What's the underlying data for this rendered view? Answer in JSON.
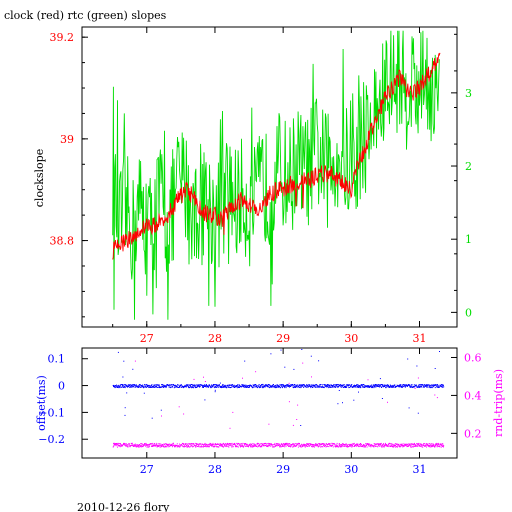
{
  "chart_data": [
    {
      "type": "line",
      "title": "clock (red) rtc (green) slopes",
      "ylabel": "clockslope",
      "x_ticks": [
        27,
        28,
        29,
        30,
        31
      ],
      "xlim": [
        26.05,
        31.55
      ],
      "ylim": [
        38.63,
        39.22
      ],
      "y_ticks": [
        38.8,
        39,
        39.2
      ],
      "y_tick_labels": [
        "38.8",
        "39",
        "39.2"
      ],
      "y2lim": [
        -0.2,
        3.9
      ],
      "y2_ticks": [
        0,
        1,
        2,
        3
      ],
      "colors": {
        "red": "#ff0000",
        "green": "#00dd00",
        "frame": "#000000"
      },
      "series": [
        {
          "color": "#ff0000",
          "axis": "left",
          "x": [
            26.5,
            26.6,
            26.7,
            26.8,
            26.9,
            27.0,
            27.1,
            27.2,
            27.3,
            27.4,
            27.5,
            27.6,
            27.7,
            27.8,
            27.9,
            28.0,
            28.1,
            28.2,
            28.3,
            28.4,
            28.5,
            28.6,
            28.7,
            28.8,
            28.9,
            29.0,
            29.1,
            29.2,
            29.3,
            29.4,
            29.5,
            29.6,
            29.7,
            29.8,
            29.9,
            30.0,
            30.1,
            30.2,
            30.3,
            30.4,
            30.5,
            30.6,
            30.7,
            30.8,
            30.9,
            31.0,
            31.1,
            31.2,
            31.3
          ],
          "values": [
            38.78,
            38.79,
            38.8,
            38.81,
            38.82,
            38.83,
            38.83,
            38.84,
            38.85,
            38.87,
            38.89,
            38.9,
            38.88,
            38.86,
            38.85,
            38.85,
            38.84,
            38.86,
            38.87,
            38.88,
            38.87,
            38.86,
            38.87,
            38.89,
            38.9,
            38.9,
            38.91,
            38.91,
            38.92,
            38.92,
            38.93,
            38.93,
            38.93,
            38.92,
            38.91,
            38.9,
            38.95,
            38.98,
            39.02,
            39.05,
            39.08,
            39.1,
            39.12,
            39.1,
            39.09,
            39.1,
            39.12,
            39.14,
            39.16
          ]
        },
        {
          "color": "#00dd00",
          "axis": "right",
          "x": [
            26.5,
            26.6,
            26.7,
            26.8,
            26.9,
            27.0,
            27.1,
            27.2,
            27.3,
            27.4,
            27.5,
            27.6,
            27.7,
            27.8,
            27.9,
            28.0,
            28.1,
            28.2,
            28.3,
            28.4,
            28.5,
            28.6,
            28.7,
            28.8,
            28.9,
            29.0,
            29.1,
            29.2,
            29.3,
            29.4,
            29.5,
            29.6,
            29.7,
            29.8,
            29.9,
            30.0,
            30.1,
            30.2,
            30.3,
            30.4,
            30.5,
            30.6,
            30.7,
            30.8,
            30.9,
            31.0,
            31.1,
            31.2,
            31.3
          ],
          "values": [
            1.7,
            1.2,
            1.4,
            1.1,
            1.5,
            1.0,
            1.3,
            1.6,
            1.2,
            1.5,
            1.8,
            1.7,
            1.3,
            1.6,
            1.5,
            1.3,
            1.4,
            1.7,
            1.5,
            1.6,
            1.4,
            1.5,
            1.8,
            1.6,
            2.0,
            1.9,
            1.8,
            2.1,
            1.9,
            2.0,
            2.2,
            2.0,
            1.9,
            2.3,
            2.1,
            1.9,
            2.2,
            2.4,
            2.6,
            2.8,
            3.0,
            3.1,
            3.3,
            3.0,
            3.2,
            3.2,
            3.3,
            3.0,
            2.8
          ]
        }
      ]
    },
    {
      "type": "scatter",
      "ylabel": "offset(ms)",
      "y2label": "rnd-trip(ms)",
      "x_ticks": [
        27,
        28,
        29,
        30,
        31
      ],
      "xlim": [
        26.05,
        31.55
      ],
      "ylim": [
        -0.27,
        0.14
      ],
      "y_ticks": [
        -0.2,
        -0.1,
        0,
        0.1
      ],
      "y_tick_labels": [
        "−0.2",
        "−0.1",
        "0",
        "0.1"
      ],
      "y2lim": [
        0.07,
        0.65
      ],
      "y2_ticks": [
        0.2,
        0.4,
        0.6
      ],
      "colors": {
        "blue": "#0000ff",
        "magenta": "#ff00ff"
      },
      "series": [
        {
          "color": "#0000ff",
          "axis": "left",
          "x_range": [
            26.5,
            31.35
          ],
          "level": 0.0,
          "spread": 0.006
        },
        {
          "color": "#ff00ff",
          "axis": "right",
          "x_range": [
            26.5,
            31.35
          ],
          "level": 0.14,
          "spread": 0.01
        }
      ]
    }
  ],
  "footer": "2010-12-26 flory"
}
